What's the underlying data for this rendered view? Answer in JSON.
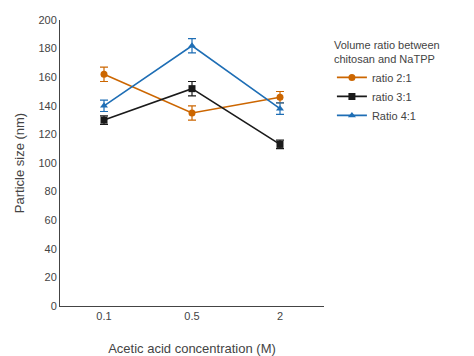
{
  "chart_data": {
    "type": "line",
    "xlabel": "Acetic acid concentration (M)",
    "ylabel": "Particle size (nm)",
    "categories": [
      "0.1",
      "0.5",
      "2"
    ],
    "series": [
      {
        "name": "ratio 2:1",
        "color": "#cc6600",
        "marker": "circle",
        "values": [
          162,
          135,
          146
        ],
        "yerr": [
          5,
          5,
          4
        ]
      },
      {
        "name": "ratio 3:1",
        "color": "#1a1a1a",
        "marker": "square",
        "values": [
          130,
          152,
          113
        ],
        "yerr": [
          3,
          5,
          3
        ]
      },
      {
        "name": "Ratio 4:1",
        "color": "#1e6eb5",
        "marker": "triangle",
        "values": [
          140,
          182,
          138
        ],
        "yerr": [
          4,
          5,
          4
        ]
      }
    ],
    "legend_title": "Volume ratio between\nchitosan and NaTPP",
    "legend": "right",
    "ylim": [
      0,
      200
    ],
    "yticks": [
      0,
      20,
      40,
      60,
      80,
      100,
      120,
      140,
      160,
      180,
      200
    ],
    "grid": false
  }
}
